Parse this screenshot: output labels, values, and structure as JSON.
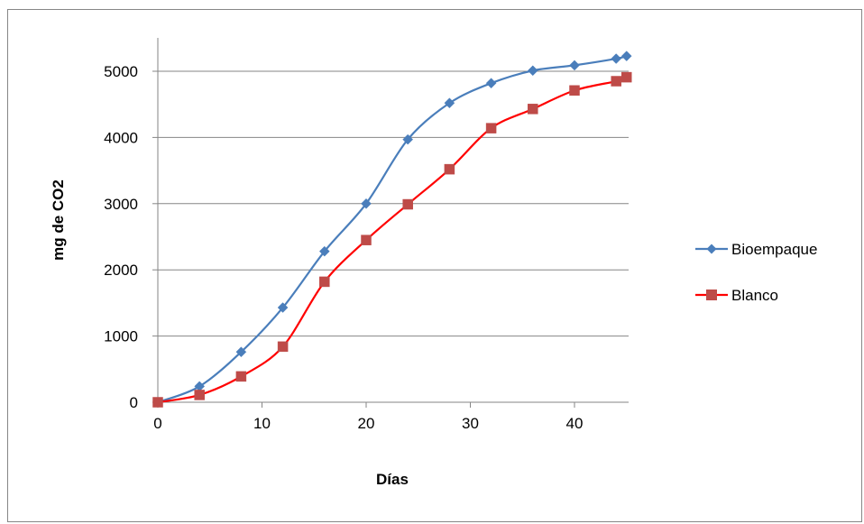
{
  "chart_data": {
    "type": "line",
    "xlabel": "Días",
    "ylabel": "mg  de CO2",
    "xlim": [
      0,
      45
    ],
    "ylim": [
      0,
      5500
    ],
    "xticks": [
      0,
      10,
      20,
      30,
      40
    ],
    "yticks": [
      0,
      1000,
      2000,
      3000,
      4000,
      5000
    ],
    "grid": "horizontal",
    "legend": "right",
    "series": [
      {
        "name": "Bioempaque",
        "color": "#4a7ebb",
        "marker": "diamond",
        "x": [
          0,
          4,
          8,
          12,
          16,
          20,
          24,
          28,
          32,
          36,
          40,
          44,
          45
        ],
        "y": [
          0,
          240,
          760,
          1430,
          2280,
          3000,
          3970,
          4520,
          4820,
          5010,
          5090,
          5190,
          5230
        ]
      },
      {
        "name": "Blanco",
        "color": "#be4b48",
        "line_color": "#ff0000",
        "marker": "square",
        "x": [
          0,
          4,
          8,
          12,
          16,
          20,
          24,
          28,
          32,
          36,
          40,
          44,
          45
        ],
        "y": [
          0,
          110,
          390,
          840,
          1820,
          2450,
          2990,
          3520,
          4140,
          4430,
          4710,
          4850,
          4910
        ]
      }
    ]
  }
}
